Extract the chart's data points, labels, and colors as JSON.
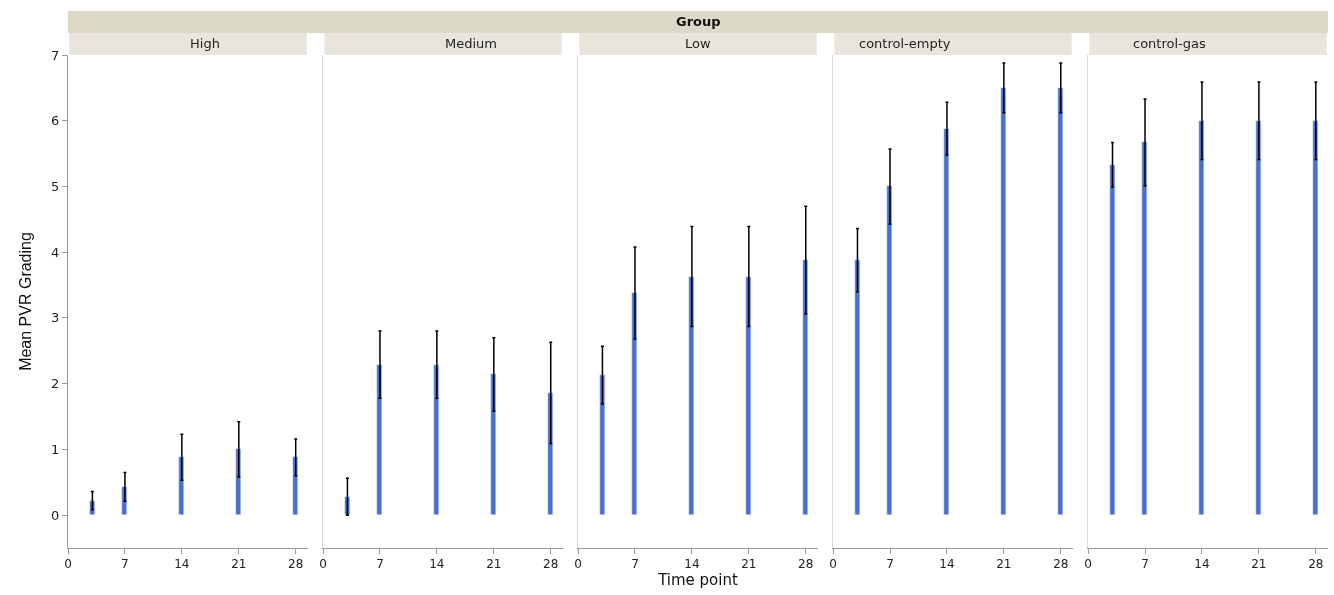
{
  "chart_data": [
    {
      "type": "bar",
      "title": "High",
      "ylabel": "Mean PVR Grading",
      "x": [
        3,
        7,
        14,
        21,
        28
      ],
      "xlim": [
        0,
        29.5
      ],
      "xticks": [
        0,
        7,
        14,
        21,
        28
      ],
      "ylim": [
        -0.5,
        7
      ],
      "yticks": [
        0,
        1,
        2,
        3,
        4,
        5,
        6,
        7
      ],
      "color": "#4a6fcc",
      "values": [
        0.22,
        0.43,
        0.88,
        1.0,
        0.88
      ],
      "errors": [
        0.14,
        0.22,
        0.35,
        0.42,
        0.28
      ]
    },
    {
      "type": "bar",
      "title": "Medium",
      "x": [
        3,
        7,
        14,
        21,
        28
      ],
      "xlim": [
        0,
        29.5
      ],
      "xticks": [
        0,
        7,
        14,
        21,
        28
      ],
      "ylim": [
        -0.5,
        7
      ],
      "yticks": [
        0,
        1,
        2,
        3,
        4,
        5,
        6,
        7
      ],
      "tick_labels": "x",
      "color": "#4a6fcc",
      "values": [
        0.28,
        2.29,
        2.29,
        2.14,
        1.86
      ],
      "errors": [
        0.28,
        0.51,
        0.51,
        0.56,
        0.77
      ]
    },
    {
      "type": "bar",
      "title": "Low",
      "xlabel": "Time point",
      "annotations": [
        "Group"
      ],
      "x": [
        3,
        7,
        14,
        21,
        28
      ],
      "xlim": [
        0,
        29.5
      ],
      "xticks": [
        0,
        7,
        14,
        21,
        28
      ],
      "ylim": [
        -0.5,
        7
      ],
      "yticks": [
        0,
        1,
        2,
        3,
        4,
        5,
        6,
        7
      ],
      "tick_labels": "x",
      "color": "#4a6fcc",
      "values": [
        2.13,
        3.38,
        3.63,
        3.63,
        3.88
      ],
      "errors": [
        0.44,
        0.7,
        0.76,
        0.76,
        0.82
      ]
    },
    {
      "type": "bar",
      "title": "control-empty",
      "x": [
        3,
        7,
        14,
        21,
        28
      ],
      "xlim": [
        0,
        29.5
      ],
      "xticks": [
        0,
        7,
        14,
        21,
        28
      ],
      "ylim": [
        -0.5,
        7
      ],
      "yticks": [
        0,
        1,
        2,
        3,
        4,
        5,
        6,
        7
      ],
      "tick_labels": "x",
      "color": "#4a6fcc",
      "values": [
        3.88,
        5.0,
        5.88,
        6.5,
        6.5
      ],
      "errors": [
        0.48,
        0.57,
        0.4,
        0.38,
        0.38
      ]
    },
    {
      "type": "bar",
      "title": "control-gas",
      "x": [
        3,
        7,
        14,
        21,
        28
      ],
      "xlim": [
        0,
        29.5
      ],
      "xticks": [
        0,
        7,
        14,
        21,
        28
      ],
      "ylim": [
        -0.5,
        7
      ],
      "yticks": [
        0,
        1,
        2,
        3,
        4,
        5,
        6,
        7
      ],
      "tick_labels": "x",
      "color": "#4a6fcc",
      "values": [
        5.33,
        5.67,
        6.0,
        6.0,
        6.0
      ],
      "errors": [
        0.34,
        0.66,
        0.59,
        0.59,
        0.59
      ]
    }
  ]
}
